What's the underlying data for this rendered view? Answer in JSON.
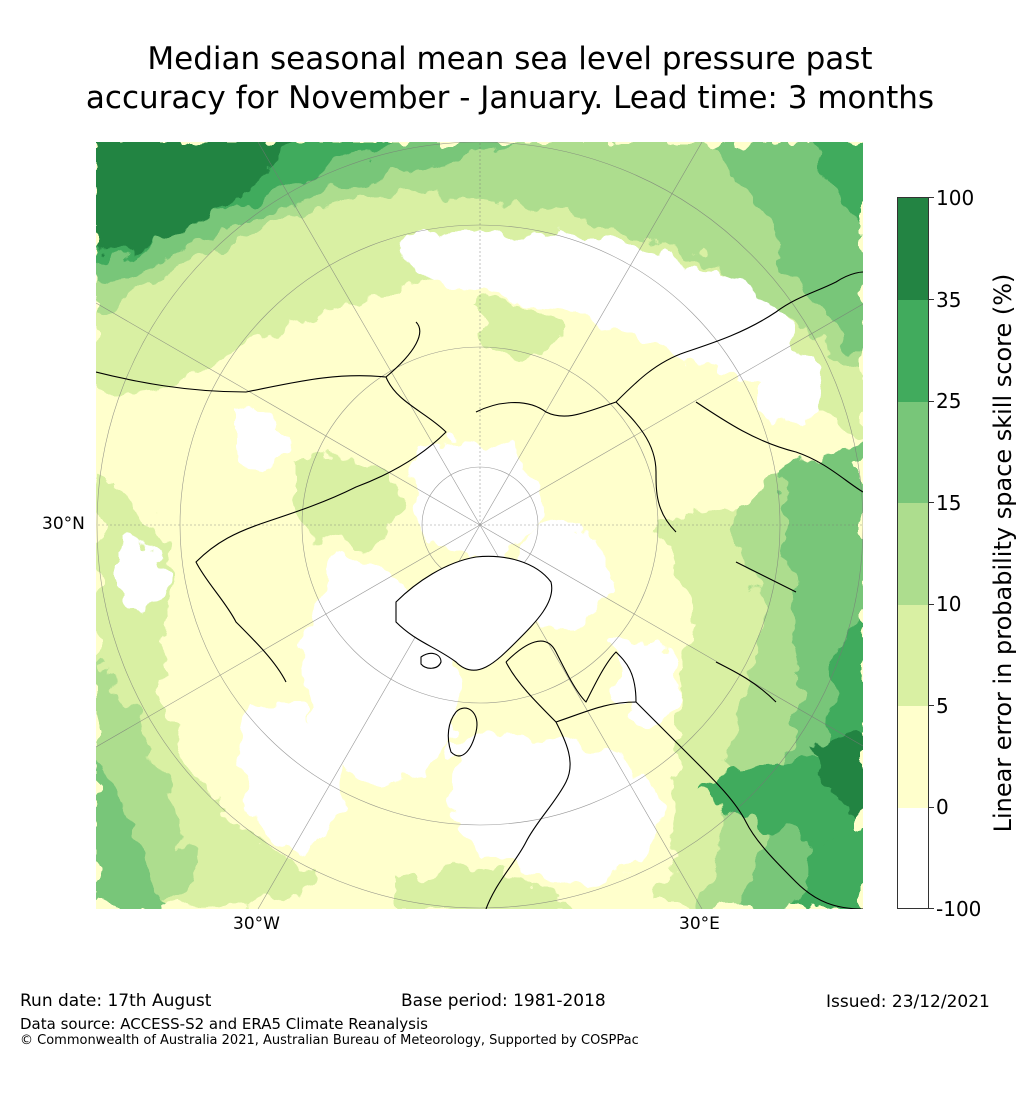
{
  "title": {
    "line1": "Median seasonal mean sea level pressure past",
    "line2": "accuracy for November - January. Lead time: 3 months"
  },
  "map": {
    "projection": "north-polar-stereographic",
    "graticule_labels": {
      "lat": "30°N",
      "lon_west": "30°W",
      "lon_east": "30°E"
    },
    "fill_colors": {
      "below_0": "#ffffff",
      "0_5": "#ffffcc",
      "5_10": "#d9f0a3",
      "10_15": "#addd8e",
      "15_25": "#78c679",
      "25_35": "#41ab5d",
      "35_100": "#238443"
    },
    "coastline_color": "#000000"
  },
  "colorbar": {
    "label": "Linear error in probability space skill score (%)",
    "ticks": [
      "-100",
      "0",
      "5",
      "10",
      "15",
      "25",
      "35",
      "100"
    ],
    "segments": [
      {
        "from": -100,
        "to": 0,
        "color": "#ffffff"
      },
      {
        "from": 0,
        "to": 5,
        "color": "#ffffcc"
      },
      {
        "from": 5,
        "to": 10,
        "color": "#d9f0a3"
      },
      {
        "from": 10,
        "to": 15,
        "color": "#addd8e"
      },
      {
        "from": 15,
        "to": 25,
        "color": "#78c679"
      },
      {
        "from": 25,
        "to": 35,
        "color": "#41ab5d"
      },
      {
        "from": 35,
        "to": 100,
        "color": "#238443"
      }
    ]
  },
  "footer": {
    "run_date": "Run date: 17th August",
    "base_period": "Base period: 1981-2018",
    "issued": "Issued: 23/12/2021",
    "data_source": "Data source: ACCESS-S2 and ERA5 Climate Reanalysis",
    "copyright": "© Commonwealth of Australia 2021, Australian Bureau of Meteorology, Supported by COSPPac"
  }
}
